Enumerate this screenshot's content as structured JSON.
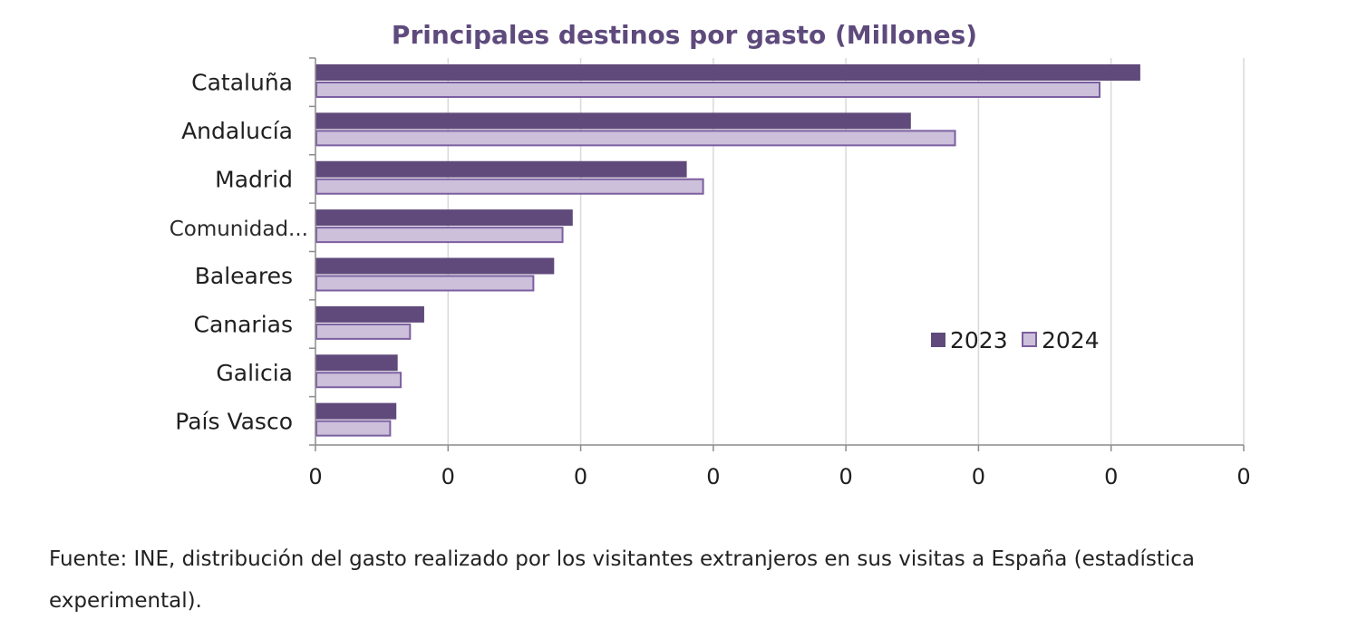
{
  "chart_data": {
    "type": "bar",
    "orientation": "horizontal",
    "title": "Principales destinos por gasto (Millones)",
    "categories": [
      "Cataluña",
      "Andalucía",
      "Madrid",
      "Comunidad...",
      "Baleares",
      "Canarias",
      "Galicia",
      "País Vasco"
    ],
    "series": [
      {
        "name": "2023",
        "color": "#604a7b",
        "values": [
          6.22,
          4.49,
          2.8,
          1.94,
          1.8,
          0.82,
          0.62,
          0.61
        ]
      },
      {
        "name": "2024",
        "color": "#ccc0da",
        "values": [
          5.92,
          4.83,
          2.93,
          1.87,
          1.65,
          0.72,
          0.65,
          0.57
        ]
      }
    ],
    "x_ticks": [
      "0",
      "0",
      "0",
      "0",
      "0",
      "0",
      "0",
      "0"
    ],
    "xlim": [
      0,
      7
    ],
    "xlabel": "",
    "ylabel": "",
    "grid": true,
    "legend_position": "right"
  },
  "colors": {
    "title": "#5e4a7c",
    "bar_2023": "#604a7b",
    "bar_2024_fill": "#ccc0da",
    "bar_2024_stroke": "#7b5fa0",
    "grid": "#d9d9d9",
    "axis": "#8c8c8c"
  },
  "footnote": "Fuente: INE, distribución del gasto realizado por los visitantes extranjeros en sus visitas a España (estadística experimental)."
}
